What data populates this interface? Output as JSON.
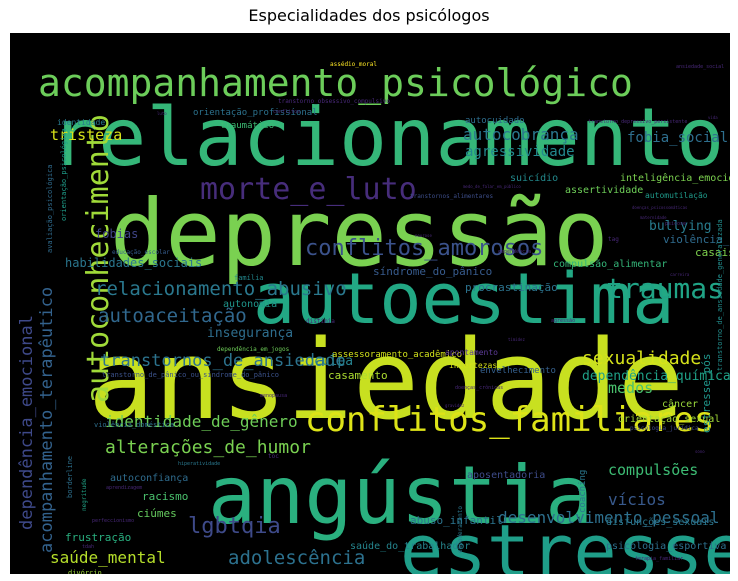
{
  "figure": {
    "title": "Especialidades dos psicólogos"
  },
  "chart_data": {
    "type": "wordcloud",
    "title": "Especialidades dos psicólogos",
    "background": "#000000",
    "colormap": "viridis",
    "words": [
      {
        "text": "ansiedade",
        "rank": 1,
        "color": "#c8e020"
      },
      {
        "text": "depressão",
        "rank": 2,
        "color": "#7ad151"
      },
      {
        "text": "relacionamentos",
        "rank": 3,
        "color": "#35b779"
      },
      {
        "text": "autoestima",
        "rank": 4,
        "color": "#22a884"
      },
      {
        "text": "angústia",
        "rank": 5,
        "color": "#2ab07f"
      },
      {
        "text": "estresse",
        "rank": 6,
        "color": "#1f9e89"
      },
      {
        "text": "acompanhamento_psicológico",
        "rank": 7,
        "color": "#6ccd5a"
      },
      {
        "text": "conflitos_familiares",
        "rank": 8,
        "color": "#dde318"
      },
      {
        "text": "autoconhecimento",
        "rank": 9,
        "color": "#a0da39"
      },
      {
        "text": "morte_e_luto",
        "rank": 10,
        "color": "#472d7b"
      },
      {
        "text": "traumas",
        "rank": 11,
        "color": "#20a486"
      },
      {
        "text": "conflitos_amorosos",
        "rank": 12,
        "color": "#3b528b"
      },
      {
        "text": "relacionamento_abusivo",
        "rank": 13,
        "color": "#2a788e"
      },
      {
        "text": "lgbtqia",
        "rank": 14,
        "color": "#3e4a89"
      },
      {
        "text": "adolescência",
        "rank": 15,
        "color": "#2c718e"
      },
      {
        "text": "autoaceitação",
        "rank": 16,
        "color": "#31688e"
      },
      {
        "text": "transtornos_de_ansiedade",
        "rank": 17,
        "color": "#2c738e"
      },
      {
        "text": "sexualidade",
        "rank": 18,
        "color": "#d5e21a"
      },
      {
        "text": "dependência_emocional",
        "rank": 19,
        "color": "#3e4989"
      },
      {
        "text": "acompanhamento_terapêutico",
        "rank": 20,
        "color": "#33628d"
      },
      {
        "text": "alterações_de_humor",
        "rank": 21,
        "color": "#7ad151"
      },
      {
        "text": "identidade_de_gênero",
        "rank": 22,
        "color": "#6ece58"
      },
      {
        "text": "desenvolvimento_pessoal",
        "rank": 23,
        "color": "#2d708e"
      },
      {
        "text": "saúde_mental",
        "rank": 24,
        "color": "#b5de2b"
      },
      {
        "text": "autocobrança",
        "rank": 25,
        "color": "#2a788e"
      },
      {
        "text": "tristeza",
        "rank": 26,
        "color": "#d8e219"
      },
      {
        "text": "agressividade",
        "rank": 27,
        "color": "#23898e"
      },
      {
        "text": "fobia_social",
        "rank": 28,
        "color": "#2e6f8e"
      },
      {
        "text": "medos",
        "rank": 29,
        "color": "#4ac16d"
      },
      {
        "text": "vícios",
        "rank": 30,
        "color": "#38598c"
      },
      {
        "text": "compulsões",
        "rank": 31,
        "color": "#3dbc74"
      },
      {
        "text": "dependência_química",
        "rank": 32,
        "color": "#1fa187"
      },
      {
        "text": "insegurança",
        "rank": 33,
        "color": "#2e6e8e"
      },
      {
        "text": "culpa",
        "rank": 34,
        "color": "#26818e"
      },
      {
        "text": "casamento",
        "rank": 35,
        "color": "#addc30"
      },
      {
        "text": "bullying",
        "rank": 36,
        "color": "#287c8e"
      },
      {
        "text": "fobias",
        "rank": 37,
        "color": "#404588"
      },
      {
        "text": "habilidades_sociais",
        "rank": 38,
        "color": "#2a768e"
      },
      {
        "text": "autonomia",
        "rank": 39,
        "color": "#1f958b"
      },
      {
        "text": "procrastinação",
        "rank": 40,
        "color": "#2c738e"
      },
      {
        "text": "síndrome_do_pânico",
        "rank": 41,
        "color": "#375b8d"
      },
      {
        "text": "racismo",
        "rank": 42,
        "color": "#4ac16d"
      },
      {
        "text": "ciúmes",
        "rank": 43,
        "color": "#65cb5e"
      },
      {
        "text": "frustração",
        "rank": 44,
        "color": "#29af7f"
      },
      {
        "text": "autoconfiança",
        "rank": 45,
        "color": "#2f6c8e"
      },
      {
        "text": "abuso_infantil",
        "rank": 46,
        "color": "#2b748e"
      },
      {
        "text": "saúde_do_trabalhador",
        "rank": 47,
        "color": "#25858e"
      },
      {
        "text": "casais",
        "rank": 48,
        "color": "#7fd34e"
      },
      {
        "text": "violência_sexual",
        "rank": 49,
        "color": "#2f6b8e"
      },
      {
        "text": "assertividade",
        "rank": 50,
        "color": "#6ece58"
      },
      {
        "text": "suicídio",
        "rank": 51,
        "color": "#238a8d"
      },
      {
        "text": "inteligência_emocional",
        "rank": 52,
        "color": "#7cd250"
      },
      {
        "text": "automutilação",
        "rank": 53,
        "color": "#1f9a8a"
      },
      {
        "text": "compulsão_alimentar",
        "rank": 54,
        "color": "#34b679"
      },
      {
        "text": "envelhecimento",
        "rank": 55,
        "color": "#35608d"
      },
      {
        "text": "assessoramento_acadêmico",
        "rank": 56,
        "color": "#d2e21b"
      },
      {
        "text": "incertezas",
        "rank": 57,
        "color": "#d8e219"
      },
      {
        "text": "apontamento",
        "rank": 58,
        "color": "#5e3c99"
      },
      {
        "text": "estresse_pós",
        "rank": 59,
        "color": "#1f968b"
      },
      {
        "text": "câncer",
        "rank": 60,
        "color": "#9bd93c"
      },
      {
        "text": "orientação_sexual",
        "rank": 61,
        "color": "#a2da37"
      },
      {
        "text": "aposentadoria",
        "rank": 62,
        "color": "#3e4c8a"
      },
      {
        "text": "disfunções_sexuais",
        "rank": 63,
        "color": "#2a778e"
      },
      {
        "text": "psicologia_esportiva",
        "rank": 64,
        "color": "#2d708e"
      },
      {
        "text": "coaching",
        "rank": 65,
        "color": "#2a788e"
      },
      {
        "text": "orientação_profissional",
        "rank": 66,
        "color": "#2c728e"
      },
      {
        "text": "traumático",
        "rank": 67,
        "color": "#3dbc74"
      },
      {
        "text": "autocuidado",
        "rank": 68,
        "color": "#2e6e8e"
      },
      {
        "text": "identidade",
        "rank": 69,
        "color": "#297a8e"
      },
      {
        "text": "família",
        "rank": 70,
        "color": "#23888e"
      },
      {
        "text": "divórcio",
        "rank": 71,
        "color": "#9fda3a"
      },
      {
        "text": "avaliação_psicológica",
        "rank": 72,
        "color": "#2f6b8e"
      },
      {
        "text": "orientação_psicológica",
        "rank": 73,
        "color": "#1e9c89"
      },
      {
        "text": "transtorno_de_ansiedade_generalizada",
        "rank": 74,
        "color": "#228d8d"
      },
      {
        "text": "borderline",
        "rank": 75,
        "color": "#2d708e"
      },
      {
        "text": "negritude",
        "rank": 76,
        "color": "#20a386"
      },
      {
        "text": "empoderamento",
        "rank": 77,
        "color": "#2a788e"
      },
      {
        "text": "violência_doméstica",
        "rank": 78,
        "color": "#2e6f8e"
      },
      {
        "text": "transtornos_alimentares",
        "rank": 79,
        "color": "#3d4e8a"
      },
      {
        "text": "educação_escolar",
        "rank": 80,
        "color": "#365c8d"
      },
      {
        "text": "dependência_em_jogos",
        "rank": 81,
        "color": "#6ece58"
      },
      {
        "text": "transtorno_de_pânico_ou_síndrome_do_pânico",
        "rank": 82,
        "color": "#3b528b"
      },
      {
        "text": "hiperatividade",
        "rank": 83,
        "color": "#2a788e"
      },
      {
        "text": "transtorno_de_déficit_de_atenção",
        "rank": 84,
        "color": "#d8e219"
      },
      {
        "text": "psicologia_jurídica",
        "rank": 85,
        "color": "#3e4989"
      },
      {
        "text": "assédio_moral",
        "rank": 86,
        "color": "#fde725"
      },
      {
        "text": "distimia",
        "rank": 87,
        "color": "#482878"
      },
      {
        "text": "doenças_crônicas",
        "rank": 88,
        "color": "#482878"
      },
      {
        "text": "perfeccionismo",
        "rank": 89,
        "color": "#482878"
      },
      {
        "text": "aprendizagem",
        "rank": 90,
        "color": "#482878"
      },
      {
        "text": "toc",
        "rank": 91,
        "color": "#482878"
      },
      {
        "text": "agressão",
        "rank": 92,
        "color": "#482878"
      },
      {
        "text": "tdah",
        "rank": 93,
        "color": "#482878"
      },
      {
        "text": "terapia_familiar",
        "rank": 94,
        "color": "#482878"
      },
      {
        "text": "transtorno_obsessivo_compulsivo",
        "rank": 95,
        "color": "#482878"
      },
      {
        "text": "transtorno_depressivo_persistente",
        "rank": 96,
        "color": "#482878"
      },
      {
        "text": "doenças_psicossomáticas",
        "rank": 97,
        "color": "#482878"
      },
      {
        "text": "medo_de_falar_em_público",
        "rank": 98,
        "color": "#482878"
      },
      {
        "text": "ansiedade_social",
        "rank": 99,
        "color": "#482878"
      },
      {
        "text": "tag",
        "rank": 100,
        "color": "#482878"
      },
      {
        "text": "dependência",
        "rank": 101,
        "color": "#482878"
      },
      {
        "text": "neurose",
        "rank": 102,
        "color": "#482878"
      },
      {
        "text": "psicose",
        "rank": 103,
        "color": "#482878"
      },
      {
        "text": "conflitos",
        "rank": 104,
        "color": "#482878"
      },
      {
        "text": "menopausa",
        "rank": 105,
        "color": "#482878"
      },
      {
        "text": "gravidez",
        "rank": 106,
        "color": "#482878"
      },
      {
        "text": "maternidade",
        "rank": 107,
        "color": "#482878"
      },
      {
        "text": "luto",
        "rank": 108,
        "color": "#482878"
      },
      {
        "text": "timidez",
        "rank": 109,
        "color": "#482878"
      },
      {
        "text": "carreira",
        "rank": 110,
        "color": "#482878"
      },
      {
        "text": "vida",
        "rank": 111,
        "color": "#482878"
      },
      {
        "text": "sono",
        "rank": 112,
        "color": "#482878"
      }
    ]
  }
}
